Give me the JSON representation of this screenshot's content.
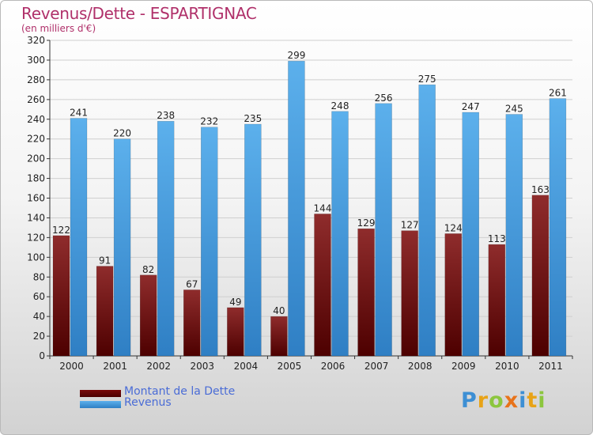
{
  "title": "Revenus/Dette - ESPARTIGNAC",
  "subtitle": "(en milliers d'€)",
  "chart_data": {
    "type": "bar",
    "title": "Revenus/Dette - ESPARTIGNAC",
    "subtitle": "(en milliers d'€)",
    "categories": [
      "2000",
      "2001",
      "2002",
      "2003",
      "2004",
      "2005",
      "2006",
      "2007",
      "2008",
      "2009",
      "2010",
      "2011"
    ],
    "series": [
      {
        "name": "Montant de la Dette",
        "color": "#7a0a0a",
        "values": [
          122,
          91,
          82,
          67,
          49,
          40,
          144,
          129,
          127,
          124,
          113,
          163
        ]
      },
      {
        "name": "Revenus",
        "color": "#4ea3e2",
        "values": [
          241,
          220,
          238,
          232,
          235,
          299,
          248,
          256,
          275,
          247,
          245,
          261
        ]
      }
    ],
    "ylim": [
      0,
      320
    ],
    "yticks": [
      0,
      20,
      40,
      60,
      80,
      100,
      120,
      140,
      160,
      180,
      200,
      220,
      240,
      260,
      280,
      300,
      320
    ],
    "grid": true,
    "legend_position": "bottom-left"
  },
  "legend": {
    "items": [
      {
        "label": "Montant de la Dette"
      },
      {
        "label": "Revenus"
      }
    ]
  },
  "logo": {
    "letters": [
      "P",
      "r",
      "o",
      "x",
      "i",
      "t",
      "i"
    ],
    "colors": [
      "#3d8fd4",
      "#e8a317",
      "#8cc63e",
      "#e8731a",
      "#3d8fd4",
      "#e8a317",
      "#8cc63e"
    ]
  }
}
